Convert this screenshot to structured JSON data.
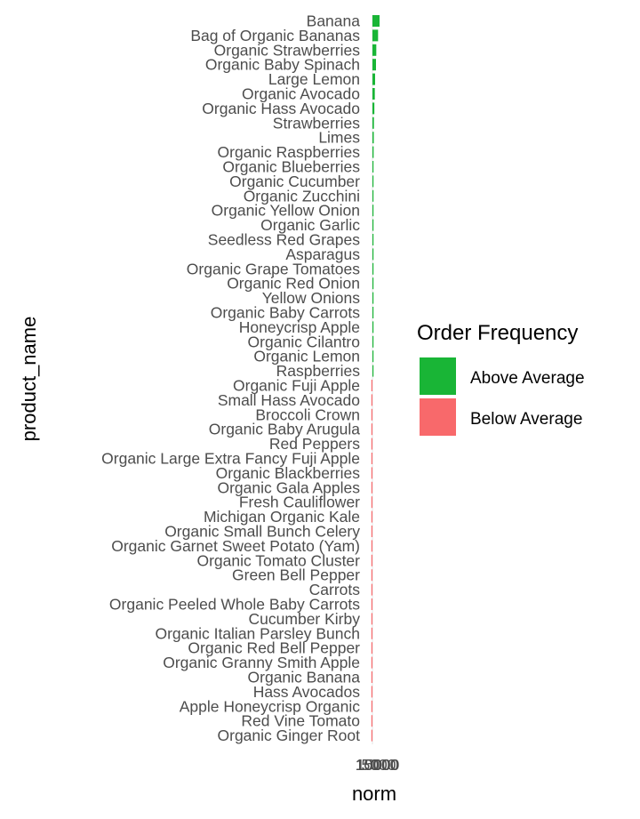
{
  "chart_data": {
    "type": "bar",
    "orientation": "horizontal",
    "xlabel": "norm",
    "ylabel": "product_name",
    "x_tick_labels": [
      "0",
      "5000",
      "10000",
      "15000"
    ],
    "grid": false,
    "legend": {
      "title": "Order Frequency",
      "placement": "right",
      "items": [
        {
          "label": "Above Average",
          "color": "#19b536"
        },
        {
          "label": "Below Average",
          "color": "#f8696b"
        }
      ]
    },
    "categories": [
      "Banana",
      "Bag of Organic Bananas",
      "Organic Strawberries",
      "Organic Baby Spinach",
      "Large Lemon",
      "Organic Avocado",
      "Organic Hass Avocado",
      "Strawberries",
      "Limes",
      "Organic Raspberries",
      "Organic Blueberries",
      "Organic Cucumber",
      "Organic Zucchini",
      "Organic Yellow Onion",
      "Organic Garlic",
      "Seedless Red Grapes",
      "Asparagus",
      "Organic Grape Tomatoes",
      "Organic Red Onion",
      "Yellow Onions",
      "Organic Baby Carrots",
      "Honeycrisp Apple",
      "Organic Cilantro",
      "Organic Lemon",
      "Raspberries",
      "Organic Fuji Apple",
      "Small Hass Avocado",
      "Broccoli Crown",
      "Organic Baby Arugula",
      "Red Peppers",
      "Organic Large Extra Fancy Fuji Apple",
      "Organic Blackberries",
      "Organic Gala Apples",
      "Fresh Cauliflower",
      "Michigan Organic Kale",
      "Organic Small Bunch Celery",
      "Organic Garnet Sweet Potato (Yam)",
      "Organic Tomato Cluster",
      "Green Bell Pepper",
      "Carrots",
      "Organic Peeled Whole Baby Carrots",
      "Cucumber Kirby",
      "Organic Italian Parsley Bunch",
      "Organic Red Bell Pepper",
      "Organic Granny Smith Apple",
      "Organic Banana",
      "Hass Avocados",
      "Apple Honeycrisp Organic",
      "Red Vine Tomato",
      "Organic Ginger Root"
    ],
    "values": [
      24000,
      19000,
      13000,
      12000,
      9000,
      8000,
      6500,
      5000,
      4500,
      4000,
      3500,
      2800,
      2500,
      2300,
      2200,
      2100,
      2000,
      1900,
      1800,
      1700,
      1600,
      1500,
      1500,
      1400,
      1300,
      -1200,
      -1300,
      -1400,
      -1500,
      -1600,
      -1700,
      -1800,
      -1900,
      -2000,
      -2100,
      -2200,
      -2300,
      -2400,
      -2500,
      -2600,
      -2700,
      -2800,
      -2900,
      -3000,
      -3100,
      -3200,
      -3300,
      -3400,
      -3500,
      -3600
    ],
    "groups": [
      "Above Average",
      "Above Average",
      "Above Average",
      "Above Average",
      "Above Average",
      "Above Average",
      "Above Average",
      "Above Average",
      "Above Average",
      "Above Average",
      "Above Average",
      "Above Average",
      "Above Average",
      "Above Average",
      "Above Average",
      "Above Average",
      "Above Average",
      "Above Average",
      "Above Average",
      "Above Average",
      "Above Average",
      "Above Average",
      "Above Average",
      "Above Average",
      "Above Average",
      "Below Average",
      "Below Average",
      "Below Average",
      "Below Average",
      "Below Average",
      "Below Average",
      "Below Average",
      "Below Average",
      "Below Average",
      "Below Average",
      "Below Average",
      "Below Average",
      "Below Average",
      "Below Average",
      "Below Average",
      "Below Average",
      "Below Average",
      "Below Average",
      "Below Average",
      "Below Average",
      "Below Average",
      "Below Average",
      "Below Average",
      "Below Average",
      "Below Average"
    ]
  }
}
